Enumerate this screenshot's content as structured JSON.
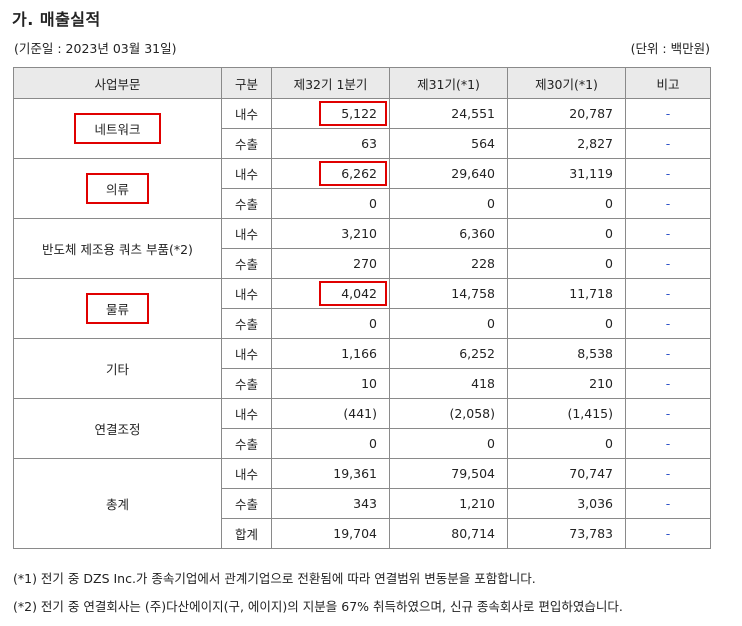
{
  "title": "가. 매출실적",
  "base_date": "(기준일 : 2023년 03월 31일)",
  "unit": "(단위 : 백만원)",
  "headers": [
    "사업부문",
    "구분",
    "제32기 1분기",
    "제31기(*1)",
    "제30기(*1)",
    "비고"
  ],
  "segments": [
    {
      "name": "네트워크",
      "highlight": true,
      "rows": [
        {
          "kind": "내수",
          "v32": "5,122",
          "v31": "24,551",
          "v30": "20,787",
          "note": "-",
          "highlight": true
        },
        {
          "kind": "수출",
          "v32": "63",
          "v31": "564",
          "v30": "2,827",
          "note": "-",
          "highlight": false
        }
      ]
    },
    {
      "name": "의류",
      "highlight": true,
      "rows": [
        {
          "kind": "내수",
          "v32": "6,262",
          "v31": "29,640",
          "v30": "31,119",
          "note": "-",
          "highlight": true
        },
        {
          "kind": "수출",
          "v32": "0",
          "v31": "0",
          "v30": "0",
          "note": "-",
          "highlight": false
        }
      ]
    },
    {
      "name": "반도체 제조용 쿼츠 부품(*2)",
      "highlight": false,
      "rows": [
        {
          "kind": "내수",
          "v32": "3,210",
          "v31": "6,360",
          "v30": "0",
          "note": "-",
          "highlight": false
        },
        {
          "kind": "수출",
          "v32": "270",
          "v31": "228",
          "v30": "0",
          "note": "-",
          "highlight": false
        }
      ]
    },
    {
      "name": "물류",
      "highlight": true,
      "rows": [
        {
          "kind": "내수",
          "v32": "4,042",
          "v31": "14,758",
          "v30": "11,718",
          "note": "-",
          "highlight": true
        },
        {
          "kind": "수출",
          "v32": "0",
          "v31": "0",
          "v30": "0",
          "note": "-",
          "highlight": false
        }
      ]
    },
    {
      "name": "기타",
      "highlight": false,
      "rows": [
        {
          "kind": "내수",
          "v32": "1,166",
          "v31": "6,252",
          "v30": "8,538",
          "note": "-",
          "highlight": false
        },
        {
          "kind": "수출",
          "v32": "10",
          "v31": "418",
          "v30": "210",
          "note": "-",
          "highlight": false
        }
      ]
    },
    {
      "name": "연결조정",
      "highlight": false,
      "rows": [
        {
          "kind": "내수",
          "v32": "(441)",
          "v31": "(2,058)",
          "v30": "(1,415)",
          "note": "-",
          "highlight": false
        },
        {
          "kind": "수출",
          "v32": "0",
          "v31": "0",
          "v30": "0",
          "note": "-",
          "highlight": false
        }
      ]
    },
    {
      "name": "총계",
      "highlight": false,
      "rows": [
        {
          "kind": "내수",
          "v32": "19,361",
          "v31": "79,504",
          "v30": "70,747",
          "note": "-",
          "highlight": false
        },
        {
          "kind": "수출",
          "v32": "343",
          "v31": "1,210",
          "v30": "3,036",
          "note": "-",
          "highlight": false
        },
        {
          "kind": "합계",
          "v32": "19,704",
          "v31": "80,714",
          "v30": "73,783",
          "note": "-",
          "highlight": false
        }
      ]
    }
  ],
  "footnotes": [
    "(*1) 전기 중 DZS Inc.가 종속기업에서 관계기업으로 전환됨에 따라 연결범위 변동분을 포함합니다.",
    "(*2) 전기 중 연결회사는 (주)다산에이지(구, 에이지)의 지분을 67% 취득하였으며, 신규 종속회사로 편입하였습니다."
  ],
  "colors": {
    "highlight_border": "#e00000",
    "note_dash": "#2f53c8",
    "header_bg": "#eaeaea"
  }
}
